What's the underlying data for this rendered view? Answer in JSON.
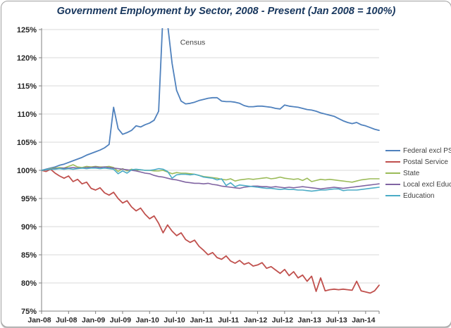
{
  "title": "Government Employment by Sector, 2008 - Present (Jan 2008 = 100%)",
  "title_color": "#17365d",
  "chart_data": {
    "type": "line",
    "title": "Government Employment by Sector, 2008 - Present (Jan 2008 = 100%)",
    "xlabel": "",
    "ylabel": "",
    "ylim": [
      75,
      125
    ],
    "y_step": 5,
    "grid": "horizontal",
    "legend_position": "right",
    "x_start": "Jan-08",
    "x_end": "Apr-14",
    "points_per_series": 76,
    "y_tick_labels": [
      "75%",
      "80%",
      "85%",
      "90%",
      "95%",
      "100%",
      "105%",
      "110%",
      "115%",
      "120%",
      "125%"
    ],
    "x_tick_labels": [
      "Jan-08",
      "Jul-08",
      "Jan-09",
      "Jul-09",
      "Jan-10",
      "Jul-10",
      "Jan-11",
      "Jul-11",
      "Jan-12",
      "Jul-12",
      "Jan-13",
      "Jul-13",
      "Jan-14"
    ],
    "annotation": {
      "text": "Census",
      "month_index": 30.8,
      "value": 122.3
    },
    "axis_color": "#808080",
    "gridline_color": "#d9d9d9",
    "tick_label_color": "#262626",
    "series": [
      {
        "name": "Federal excl PS",
        "color": "#4F81BD",
        "values": [
          100.0,
          100.2,
          100.4,
          100.6,
          100.9,
          101.1,
          101.4,
          101.7,
          102.0,
          102.3,
          102.7,
          103.0,
          103.3,
          103.6,
          104.0,
          104.6,
          111.2,
          107.4,
          106.4,
          106.7,
          107.1,
          107.9,
          107.7,
          108.1,
          108.4,
          108.9,
          110.5,
          128.0,
          126.0,
          119.0,
          114.2,
          112.3,
          111.8,
          111.9,
          112.1,
          112.4,
          112.6,
          112.8,
          112.9,
          112.9,
          112.3,
          112.2,
          112.2,
          112.1,
          111.9,
          111.5,
          111.3,
          111.3,
          111.4,
          111.4,
          111.3,
          111.2,
          111.0,
          110.9,
          111.6,
          111.4,
          111.3,
          111.2,
          111.0,
          110.8,
          110.7,
          110.5,
          110.2,
          110.0,
          109.8,
          109.6,
          109.2,
          108.8,
          108.5,
          108.3,
          108.5,
          108.1,
          107.9,
          107.6,
          107.3,
          107.1
        ]
      },
      {
        "name": "Postal Service",
        "color": "#C0504D",
        "values": [
          100.0,
          99.8,
          100.2,
          99.5,
          99.0,
          98.6,
          99.0,
          98.0,
          98.4,
          97.6,
          97.9,
          96.8,
          96.5,
          96.9,
          96.0,
          95.6,
          96.1,
          95.0,
          94.2,
          94.6,
          93.5,
          92.8,
          93.3,
          92.2,
          91.4,
          91.9,
          90.6,
          88.9,
          90.3,
          89.2,
          88.4,
          88.9,
          87.7,
          87.2,
          87.6,
          86.5,
          85.8,
          85.0,
          85.4,
          84.5,
          84.2,
          84.8,
          83.9,
          83.5,
          84.0,
          83.3,
          83.6,
          83.0,
          83.2,
          83.6,
          82.6,
          82.9,
          82.3,
          81.7,
          82.4,
          81.3,
          82.0,
          80.9,
          81.4,
          80.3,
          81.2,
          78.5,
          80.9,
          78.6,
          78.8,
          78.9,
          78.8,
          78.9,
          78.8,
          78.7,
          80.3,
          78.6,
          78.4,
          78.2,
          78.6,
          79.6
        ]
      },
      {
        "name": "State",
        "color": "#9BBB59",
        "values": [
          100.0,
          100.1,
          100.3,
          100.4,
          100.5,
          100.4,
          100.7,
          101.0,
          100.6,
          100.5,
          100.7,
          100.6,
          100.7,
          100.6,
          100.6,
          100.7,
          100.5,
          99.8,
          100.3,
          99.9,
          100.2,
          100.0,
          100.1,
          100.0,
          100.0,
          99.9,
          99.9,
          100.0,
          99.7,
          99.4,
          99.6,
          99.5,
          99.5,
          99.4,
          99.3,
          99.1,
          98.9,
          98.8,
          98.7,
          98.6,
          98.4,
          98.3,
          98.5,
          98.1,
          98.3,
          98.4,
          98.5,
          98.4,
          98.5,
          98.6,
          98.7,
          98.5,
          98.6,
          98.8,
          98.6,
          98.5,
          98.4,
          98.5,
          98.2,
          98.6,
          98.0,
          98.2,
          98.4,
          98.3,
          98.4,
          98.3,
          98.2,
          98.1,
          98.0,
          97.9,
          98.1,
          98.3,
          98.4,
          98.5,
          98.5,
          98.5
        ]
      },
      {
        "name": "Local excl Educ",
        "color": "#8064A2",
        "values": [
          100.0,
          100.1,
          100.2,
          100.3,
          100.3,
          100.4,
          100.4,
          100.5,
          100.4,
          100.4,
          100.5,
          100.5,
          100.6,
          100.5,
          100.6,
          100.5,
          100.4,
          100.3,
          100.2,
          100.1,
          100.0,
          99.9,
          99.7,
          99.5,
          99.4,
          99.1,
          98.9,
          98.8,
          98.6,
          98.4,
          98.3,
          98.1,
          97.9,
          97.8,
          97.7,
          97.7,
          97.6,
          97.7,
          97.5,
          97.4,
          97.2,
          97.1,
          97.0,
          96.9,
          96.8,
          97.0,
          97.1,
          97.2,
          97.2,
          97.1,
          97.1,
          97.0,
          97.1,
          97.0,
          96.9,
          97.0,
          96.9,
          97.0,
          97.1,
          97.0,
          96.9,
          96.8,
          96.7,
          96.8,
          96.9,
          97.0,
          96.9,
          96.8,
          96.9,
          97.0,
          97.1,
          97.2,
          97.3,
          97.4,
          97.5,
          97.6
        ]
      },
      {
        "name": "Education",
        "color": "#4BACC6",
        "values": [
          100.0,
          100.1,
          100.2,
          100.2,
          100.3,
          100.2,
          100.3,
          100.2,
          100.3,
          100.4,
          100.3,
          100.4,
          100.4,
          100.3,
          100.4,
          100.3,
          100.2,
          99.4,
          99.9,
          99.5,
          100.1,
          100.2,
          100.1,
          100.0,
          100.0,
          100.1,
          100.3,
          100.2,
          99.8,
          98.6,
          99.2,
          99.3,
          99.3,
          99.2,
          99.3,
          99.1,
          98.8,
          98.7,
          98.6,
          98.3,
          98.5,
          97.3,
          97.8,
          97.1,
          97.4,
          97.3,
          97.2,
          97.1,
          97.0,
          96.9,
          96.8,
          96.8,
          96.7,
          96.6,
          96.7,
          96.6,
          96.6,
          96.5,
          96.5,
          96.4,
          96.3,
          96.4,
          96.5,
          96.5,
          96.6,
          96.7,
          96.7,
          96.4,
          96.5,
          96.5,
          96.5,
          96.6,
          96.7,
          96.8,
          96.9,
          97.0
        ]
      }
    ]
  }
}
